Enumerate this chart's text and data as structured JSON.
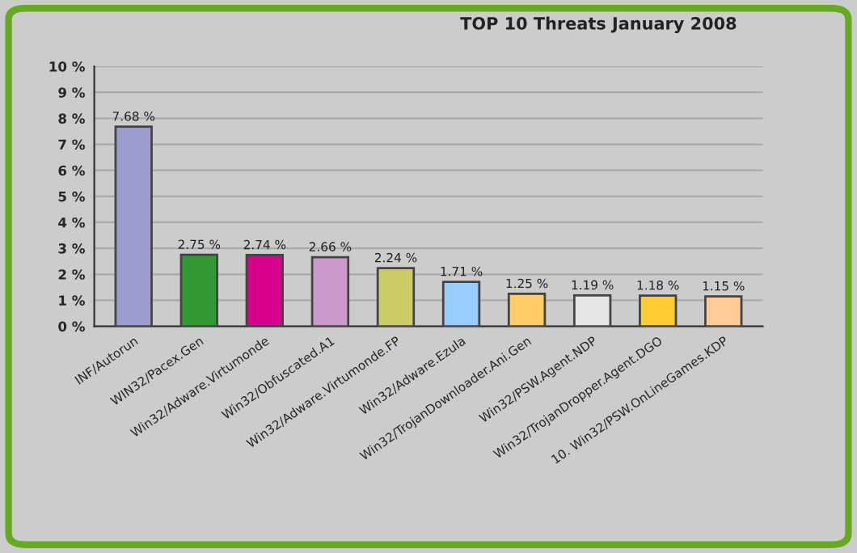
{
  "chart_data": {
    "type": "bar",
    "title": "TOP 10 Threats January 2008",
    "categories": [
      "INF/Autorun",
      "WIN32/Pacex.Gen",
      "Win32/Adware.Virtumonde",
      "Win32/Obfuscated.A1",
      "Win32/Adware.Virtumonde.FP",
      "Win32/Adware.Ezula",
      "Win32/TrojanDownloader.Ani.Gen",
      "Win32/PSW.Agent.NDP",
      "Win32/TrojanDropper.Agent.DGO",
      "10. Win32/PSW.OnLineGames.KDP"
    ],
    "values": [
      7.68,
      2.75,
      2.74,
      2.66,
      2.24,
      1.71,
      1.25,
      1.19,
      1.18,
      1.15
    ],
    "value_labels": [
      "7.68 %",
      "2.75 %",
      "2.74 %",
      "2.66 %",
      "2.24 %",
      "1.71 %",
      "1.25 %",
      "1.19 %",
      "1.18 %",
      "1.15 %"
    ],
    "colors": [
      "#9c9ccf",
      "#339933",
      "#d9008c",
      "#cc99cc",
      "#cccc66",
      "#99ccff",
      "#ffcc66",
      "#e6e6e6",
      "#ffcc33",
      "#ffcc99"
    ],
    "ylim": [
      0,
      10
    ],
    "yticks": [
      {
        "value": 0,
        "label": "0 %"
      },
      {
        "value": 1,
        "label": "1 %"
      },
      {
        "value": 2,
        "label": "2 %"
      },
      {
        "value": 3,
        "label": "3 %"
      },
      {
        "value": 4,
        "label": "4 %"
      },
      {
        "value": 5,
        "label": "5 %"
      },
      {
        "value": 6,
        "label": "6 %"
      },
      {
        "value": 7,
        "label": "7 %"
      },
      {
        "value": 8,
        "label": "8 %"
      },
      {
        "value": 9,
        "label": "9 %"
      },
      {
        "value": 10,
        "label": "10 %"
      }
    ],
    "grid": "y",
    "legend": false
  }
}
